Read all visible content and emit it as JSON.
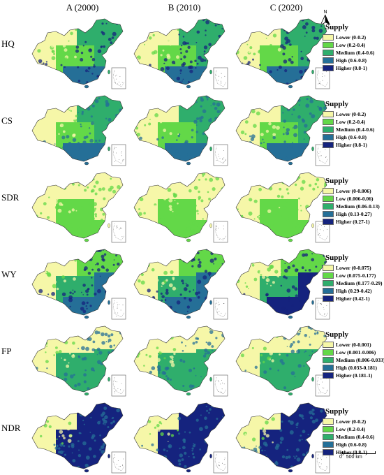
{
  "columns": [
    "A (2000)",
    "B (2010)",
    "C (2020)"
  ],
  "north_label": "N",
  "scale_bar": {
    "zero": "0",
    "distance": "500 km"
  },
  "palette": [
    "#f6f7a8",
    "#63d848",
    "#2fae6c",
    "#256f97",
    "#15237e"
  ],
  "island_inset_border": "#555555",
  "rows": [
    {
      "label": "HQ",
      "legend_title": "Supply",
      "legend": [
        "Lower (0-0.2)",
        "Low (0.2-0.4)",
        "Medium (0.4-0.6)",
        "High (0.6-0.8)",
        "Higher (0.8-1)"
      ],
      "map_style": {
        "north": 2,
        "west": 0,
        "center": 1,
        "east": 2,
        "south": 3,
        "speckle": 4
      },
      "variation": [
        0,
        0,
        0
      ]
    },
    {
      "label": "CS",
      "legend_title": "Supply",
      "legend": [
        "Lower (0-0.2)",
        "Low (0.2-0.4)",
        "Medium (0.4-0.6)",
        "High (0.6-0.8)",
        "Higher (0.8-1)"
      ],
      "map_style": {
        "north": 2,
        "west": 0,
        "center": 1,
        "east": 2,
        "south": 3,
        "speckle": 3
      },
      "variation": [
        0,
        0,
        0
      ]
    },
    {
      "label": "SDR",
      "legend_title": "Supply",
      "legend": [
        "Lower (0-0.006)",
        "Low (0.006-0.06)",
        "Medium (0.06-0.13)",
        "High (0.13-0.27)",
        "Higher (0.27-1)"
      ],
      "map_style": {
        "north": 0,
        "west": 0,
        "center": 1,
        "east": 0,
        "south": 1,
        "speckle": 1
      },
      "variation": [
        0,
        0,
        0
      ]
    },
    {
      "label": "WY",
      "legend_title": "Supply",
      "legend": [
        "Lower (0-0.075)",
        "Low (0.075-0.177)",
        "Medium (0.177-0.29)",
        "High (0.29-0.42)",
        "Higher (0.42-1)"
      ],
      "map_style": {
        "north": 1,
        "west": 0,
        "center": 2,
        "east": 3,
        "south": 3,
        "speckle": 4
      },
      "variation": [
        0,
        0,
        1
      ]
    },
    {
      "label": "FP",
      "legend_title": "Supply",
      "legend": [
        "Lower (0-0.001)",
        "Low (0.001-0.006)",
        "Medium (0.006-0.033)",
        "High (0.033-0.181)",
        "Higher (0.181-1)"
      ],
      "map_style": {
        "north": 0,
        "west": 0,
        "center": 2,
        "east": 2,
        "south": 2,
        "speckle": 3
      },
      "variation": [
        0,
        0,
        0
      ]
    },
    {
      "label": "NDR",
      "legend_title": "Supply",
      "legend": [
        "Lower (0-0.2)",
        "Low (0.2-0.4)",
        "Medium (0.4-0.6)",
        "High (0.6-0.8)",
        "Higher (0.8-1)"
      ],
      "map_style": {
        "north": 4,
        "west": 0,
        "center": 4,
        "east": 4,
        "south": 4,
        "speckle": 3
      },
      "variation": [
        0,
        0,
        0
      ]
    }
  ]
}
